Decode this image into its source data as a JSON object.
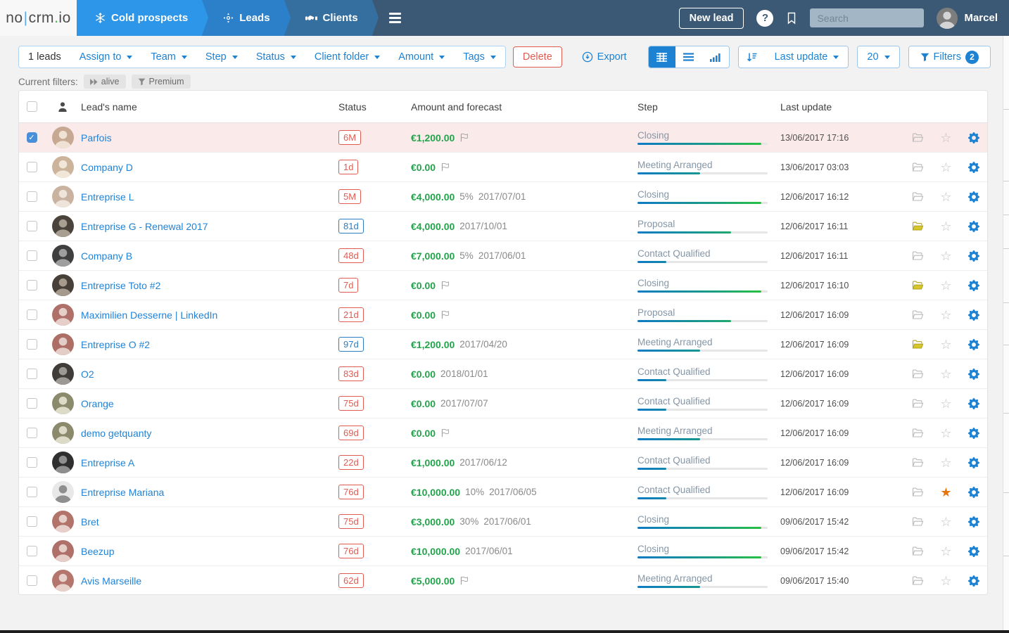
{
  "icons": {
    "snowflake-icon": "❄",
    "move-target-icon": "✛",
    "handshake-icon": "handshake",
    "hamburger-icon": "☰",
    "help-icon": "?",
    "bookmark-icon": "bookmark",
    "search-icon": "search",
    "export-icon": "circle-down-arrow",
    "grid-view-icon": "grid",
    "list-view-icon": "list",
    "chart-view-icon": "bars",
    "sort-desc-icon": "sort-down",
    "funnel-icon": "funnel",
    "fast-forward-icon": "▶▶",
    "contact-icon": "person",
    "flag-icon": "flag",
    "folder-icon": "open-folder",
    "star-outline": "☆",
    "star-filled": "★",
    "gear-icon": "gear",
    "caret-down": "▾",
    "check-mark": "✓"
  },
  "colors": {
    "navbar_bg": "#3b5974",
    "tab_cold": "#2e96e8",
    "tab_leads": "#2c80ca",
    "tab_clients": "#356f9f",
    "accent_blue": "#1d82d2",
    "link_blue": "#2183d6",
    "amount_green": "#23a34c",
    "badge_red": "#e05c52",
    "badge_blue": "#2c7fc4",
    "selected_row_bg": "#fbeaea",
    "progress_start": "#0e7ac4",
    "progress_end": "#2bc43c",
    "star_orange": "#e8740c",
    "folder_yellow": "#d6c62b",
    "logo_dot_green": "#3cb54a"
  },
  "navbar": {
    "logo": {
      "pre": "no",
      "cursor": "|",
      "mid": "crm",
      "dot": ".",
      "suf": "io"
    },
    "tabs": [
      {
        "label": "Cold prospects",
        "icon": "snowflake-icon"
      },
      {
        "label": "Leads",
        "icon": "move-target-icon"
      },
      {
        "label": "Clients",
        "icon": "handshake-icon"
      }
    ],
    "new_lead_label": "New lead",
    "search_placeholder": "Search",
    "user_name": "Marcel"
  },
  "toolbar": {
    "count_label": "1 leads",
    "dropdowns": [
      "Assign to",
      "Team",
      "Step",
      "Status",
      "Client folder",
      "Amount",
      "Tags"
    ],
    "delete_label": "Delete",
    "export_label": "Export",
    "sort_by_label": "Last update",
    "page_size": "20",
    "filters_label": "Filters",
    "filters_count": "2"
  },
  "current_filters": {
    "label": "Current filters:",
    "badges": [
      {
        "icon": "fast-forward-icon",
        "label": "alive"
      },
      {
        "icon": "funnel-icon",
        "label": "Premium"
      }
    ]
  },
  "table": {
    "headers": {
      "name": "Lead's name",
      "status": "Status",
      "amount": "Amount and forecast",
      "step": "Step",
      "last_update": "Last update"
    },
    "rows": [
      {
        "name": "Parfois",
        "selected": true,
        "checked": true,
        "avatar": {
          "bg": "#c7a893",
          "fg": "#efe2d4"
        },
        "status": "6M",
        "status_color": "red",
        "amount": "€1,200.00",
        "percent": "",
        "forecast_date": "",
        "flag": true,
        "step": "Closing",
        "progress": 95,
        "last_update": "13/06/2017 17:16",
        "folder": "gray",
        "star": "gray"
      },
      {
        "name": "Company D",
        "selected": false,
        "checked": false,
        "avatar": {
          "bg": "#cbb39c",
          "fg": "#f1e6d8"
        },
        "status": "1d",
        "status_color": "red",
        "amount": "€0.00",
        "percent": "",
        "forecast_date": "",
        "flag": true,
        "step": "Meeting Arranged",
        "progress": 48,
        "last_update": "13/06/2017 03:03",
        "folder": "gray",
        "star": "gray"
      },
      {
        "name": "Entreprise L",
        "selected": false,
        "checked": false,
        "avatar": {
          "bg": "#c9b2a0",
          "fg": "#efe4d9"
        },
        "status": "5M",
        "status_color": "red",
        "amount": "€4,000.00",
        "percent": "5%",
        "forecast_date": "2017/07/01",
        "flag": false,
        "step": "Closing",
        "progress": 95,
        "last_update": "12/06/2017 16:12",
        "folder": "gray",
        "star": "gray"
      },
      {
        "name": "Entreprise G - Renewal 2017",
        "selected": false,
        "checked": false,
        "avatar": {
          "bg": "#4a433c",
          "fg": "#a89e92"
        },
        "status": "81d",
        "status_color": "blue",
        "amount": "€4,000.00",
        "percent": "",
        "forecast_date": "2017/10/01",
        "flag": false,
        "step": "Proposal",
        "progress": 72,
        "last_update": "12/06/2017 16:11",
        "folder": "yellow",
        "star": "gray"
      },
      {
        "name": "Company B",
        "selected": false,
        "checked": false,
        "avatar": {
          "bg": "#3f3f3f",
          "fg": "#9e9e9e"
        },
        "status": "48d",
        "status_color": "red",
        "amount": "€7,000.00",
        "percent": "5%",
        "forecast_date": "2017/06/01",
        "flag": false,
        "step": "Contact Qualified",
        "progress": 22,
        "last_update": "12/06/2017 16:11",
        "folder": "gray",
        "star": "gray"
      },
      {
        "name": "Entreprise Toto #2",
        "selected": false,
        "checked": false,
        "avatar": {
          "bg": "#474038",
          "fg": "#a59a8c"
        },
        "status": "7d",
        "status_color": "red",
        "amount": "€0.00",
        "percent": "",
        "forecast_date": "",
        "flag": true,
        "step": "Closing",
        "progress": 95,
        "last_update": "12/06/2017 16:10",
        "folder": "yellow",
        "star": "gray"
      },
      {
        "name": "Maximilien Desserne | LinkedIn",
        "selected": false,
        "checked": false,
        "avatar": {
          "bg": "#b0706a",
          "fg": "#e6cfc9"
        },
        "status": "21d",
        "status_color": "red",
        "amount": "€0.00",
        "percent": "",
        "forecast_date": "",
        "flag": true,
        "step": "Proposal",
        "progress": 72,
        "last_update": "12/06/2017 16:09",
        "folder": "gray",
        "star": "gray"
      },
      {
        "name": "Entreprise O #2",
        "selected": false,
        "checked": false,
        "avatar": {
          "bg": "#ad6e66",
          "fg": "#e4cdc6"
        },
        "status": "97d",
        "status_color": "blue",
        "amount": "€1,200.00",
        "percent": "",
        "forecast_date": "2017/04/20",
        "flag": false,
        "step": "Meeting Arranged",
        "progress": 48,
        "last_update": "12/06/2017 16:09",
        "folder": "yellow",
        "star": "gray"
      },
      {
        "name": "O2",
        "selected": false,
        "checked": false,
        "avatar": {
          "bg": "#3f3c39",
          "fg": "#9c9894"
        },
        "status": "83d",
        "status_color": "red",
        "amount": "€0.00",
        "percent": "",
        "forecast_date": "2018/01/01",
        "flag": false,
        "step": "Contact Qualified",
        "progress": 22,
        "last_update": "12/06/2017 16:09",
        "folder": "gray",
        "star": "gray"
      },
      {
        "name": "Orange",
        "selected": false,
        "checked": false,
        "avatar": {
          "bg": "#8b8a6d",
          "fg": "#dcdbc8"
        },
        "status": "75d",
        "status_color": "red",
        "amount": "€0.00",
        "percent": "",
        "forecast_date": "2017/07/07",
        "flag": false,
        "step": "Contact Qualified",
        "progress": 22,
        "last_update": "12/06/2017 16:09",
        "folder": "gray",
        "star": "gray"
      },
      {
        "name": "demo getquanty",
        "selected": false,
        "checked": false,
        "avatar": {
          "bg": "#8b8a6d",
          "fg": "#dcdbc8"
        },
        "status": "69d",
        "status_color": "red",
        "amount": "€0.00",
        "percent": "",
        "forecast_date": "",
        "flag": true,
        "step": "Meeting Arranged",
        "progress": 48,
        "last_update": "12/06/2017 16:09",
        "folder": "gray",
        "star": "gray"
      },
      {
        "name": "Entreprise A",
        "selected": false,
        "checked": false,
        "avatar": {
          "bg": "#2f2f2f",
          "fg": "#8f8f8f"
        },
        "status": "22d",
        "status_color": "red",
        "amount": "€1,000.00",
        "percent": "",
        "forecast_date": "2017/06/12",
        "flag": false,
        "step": "Contact Qualified",
        "progress": 22,
        "last_update": "12/06/2017 16:09",
        "folder": "gray",
        "star": "gray"
      },
      {
        "name": "Entreprise Mariana",
        "selected": false,
        "checked": false,
        "avatar": {
          "bg": "#e8e8e8",
          "fg": "#8f8f8f"
        },
        "status": "76d",
        "status_color": "red",
        "amount": "€10,000.00",
        "percent": "10%",
        "forecast_date": "2017/06/05",
        "flag": false,
        "step": "Contact Qualified",
        "progress": 22,
        "last_update": "12/06/2017 16:09",
        "folder": "gray",
        "star": "orange"
      },
      {
        "name": "Bret",
        "selected": false,
        "checked": false,
        "avatar": {
          "bg": "#b2736b",
          "fg": "#e7d0c9"
        },
        "status": "75d",
        "status_color": "red",
        "amount": "€3,000.00",
        "percent": "30%",
        "forecast_date": "2017/06/01",
        "flag": false,
        "step": "Closing",
        "progress": 95,
        "last_update": "09/06/2017 15:42",
        "folder": "gray",
        "star": "gray"
      },
      {
        "name": "Beezup",
        "selected": false,
        "checked": false,
        "avatar": {
          "bg": "#af706a",
          "fg": "#e5cec8"
        },
        "status": "76d",
        "status_color": "red",
        "amount": "€10,000.00",
        "percent": "",
        "forecast_date": "2017/06/01",
        "flag": false,
        "step": "Closing",
        "progress": 95,
        "last_update": "09/06/2017 15:42",
        "folder": "gray",
        "star": "gray"
      },
      {
        "name": "Avis Marseille",
        "selected": false,
        "checked": false,
        "avatar": {
          "bg": "#b4756d",
          "fg": "#e8d1ca"
        },
        "status": "62d",
        "status_color": "red",
        "amount": "€5,000.00",
        "percent": "",
        "forecast_date": "",
        "flag": true,
        "step": "Meeting Arranged",
        "progress": 48,
        "last_update": "09/06/2017 15:40",
        "folder": "gray",
        "star": "gray"
      }
    ]
  }
}
